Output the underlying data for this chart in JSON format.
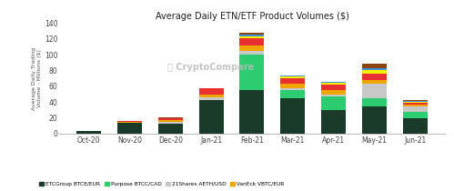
{
  "title": "Average Daily ETN/ETF Product Volumes ($)",
  "ylabel": "Average Daily Trading\nVolume - Millions ($)",
  "categories": [
    "Oct-20",
    "Nov-20",
    "Dec-20",
    "Jan-21",
    "Feb-21",
    "Mar-21",
    "Apr-21",
    "May-21",
    "Jun-21"
  ],
  "series": {
    "ETCGroup BTCE/EUR": [
      3,
      14,
      13,
      42,
      55,
      45,
      30,
      35,
      20
    ],
    "Purpose BTCC/CAD": [
      0,
      0,
      0,
      0,
      45,
      10,
      17,
      10,
      8
    ],
    "21Shares AETH/USD": [
      0,
      0,
      2,
      4,
      5,
      3,
      3,
      18,
      7
    ],
    "VanEck VBTC/EUR": [
      0,
      1,
      2,
      4,
      7,
      5,
      5,
      5,
      2
    ],
    "Wisdomtree BTCW/USD": [
      0,
      1,
      3,
      8,
      9,
      7,
      7,
      8,
      2
    ],
    "21Shares ABTC/USD": [
      0,
      0,
      0,
      0,
      2,
      2,
      2,
      4,
      1
    ],
    "21Shares ADOT/USD": [
      0,
      0,
      0,
      0,
      2,
      1,
      1,
      3,
      1
    ],
    "21Shares AXRP/USD": [
      0,
      0,
      1,
      0,
      3,
      1,
      1,
      5,
      1
    ]
  },
  "colors": {
    "ETCGroup BTCE/EUR": "#1a3a2a",
    "Purpose BTCC/CAD": "#2ecc71",
    "21Shares AETH/USD": "#c8c8c8",
    "VanEck VBTC/EUR": "#f0a500",
    "Wisdomtree BTCW/USD": "#e83030",
    "21Shares ABTC/USD": "#f5f000",
    "21Shares ADOT/USD": "#4090e0",
    "21Shares AXRP/USD": "#8b4513"
  },
  "ylim": [
    0,
    140
  ],
  "yticks": [
    0,
    20,
    40,
    60,
    80,
    100,
    120,
    140
  ],
  "background_color": "#ffffff",
  "watermark": "CryptoCompare"
}
